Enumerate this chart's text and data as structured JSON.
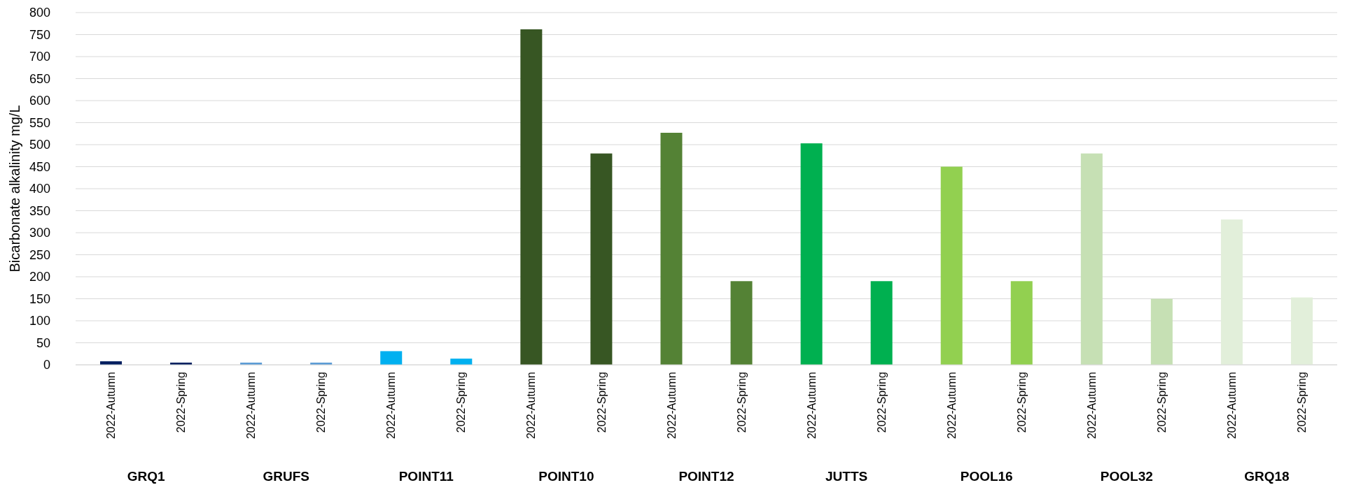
{
  "chart_data": {
    "type": "bar",
    "ylabel": "Bicarbonate alkalinity mg/L",
    "categories": [
      "2022-Autumn",
      "2022-Spring",
      "2022-Autumn",
      "2022-Spring",
      "2022-Autumn",
      "2022-Spring",
      "2022-Autumn",
      "2022-Spring",
      "2022-Autumn",
      "2022-Spring",
      "2022-Autumn",
      "2022-Spring",
      "2022-Autumn",
      "2022-Spring",
      "2022-Autumn",
      "2022-Spring",
      "2022-Autumn",
      "2022-Spring"
    ],
    "values": [
      8,
      5,
      5,
      5,
      31,
      14,
      762,
      480,
      527,
      190,
      503,
      190,
      450,
      190,
      480,
      150,
      330,
      153
    ],
    "colors": [
      "#002060",
      "#002060",
      "#5b9bd5",
      "#5b9bd5",
      "#00b0f0",
      "#00b0f0",
      "#375623",
      "#375623",
      "#548235",
      "#548235",
      "#00b050",
      "#00b050",
      "#92d050",
      "#92d050",
      "#c6e0b4",
      "#c6e0b4",
      "#e2efda",
      "#e2efda"
    ],
    "annotations": [
      "GRQ1",
      "GRUFS",
      "POINT11",
      "POINT10",
      "POINT12",
      "JUTTS",
      "POOL16",
      "POOL32",
      "GRQ18"
    ],
    "ylim": [
      0,
      800
    ],
    "yticks": [
      0,
      50,
      100,
      150,
      200,
      250,
      300,
      350,
      400,
      450,
      500,
      550,
      600,
      650,
      700,
      750,
      800
    ],
    "grid": "y"
  }
}
